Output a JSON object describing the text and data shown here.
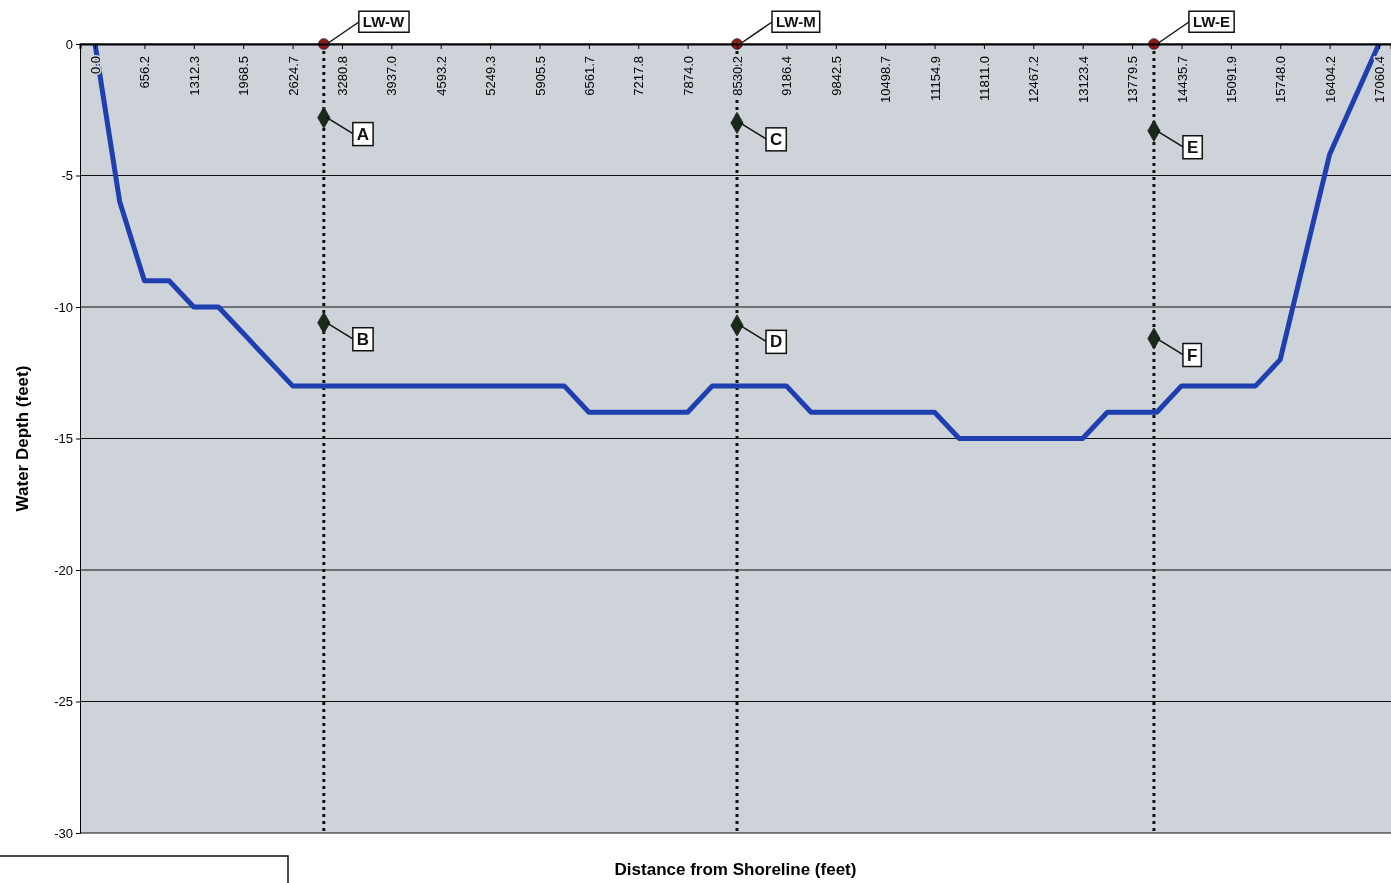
{
  "chart_data": {
    "type": "line",
    "xlabel": "Distance from Shoreline (feet)",
    "ylabel": "Water Depth (feet)",
    "xlim": [
      -200,
      17220
    ],
    "ylim": [
      -30,
      0
    ],
    "xticks": [
      {
        "value": 0,
        "label": "0.0"
      },
      656.2,
      1312.3,
      1968.5,
      2624.7,
      3280.8,
      {
        "value": 3937,
        "label": "3937.0"
      },
      4593.2,
      5249.3,
      5905.5,
      6561.7,
      7217.8,
      {
        "value": 7874,
        "label": "7874.0"
      },
      8530.2,
      9186.4,
      9842.5,
      10498.7,
      11154.9,
      {
        "value": 11811,
        "label": "11811.0"
      },
      12467.2,
      13123.4,
      13779.5,
      14435.7,
      15091.9,
      {
        "value": 15748,
        "label": "15748.0"
      },
      16404.2,
      17060.4
    ],
    "yticks": [
      0,
      -5,
      -10,
      -15,
      -20,
      -25,
      -30
    ],
    "grid": "y",
    "series": [
      {
        "color": "#1f3fb0",
        "marker": "none",
        "x": [
          0,
          328,
          656,
          984,
          1312,
          1640,
          2625,
          6234,
          6562,
          7874,
          8202,
          9186,
          9514,
          11155,
          11483,
          13123,
          13451,
          14108,
          14436,
          15420,
          15748,
          16404,
          17060
        ],
        "values": [
          0,
          -6,
          -9,
          -9,
          -10,
          -10,
          -13,
          -13,
          -14,
          -14,
          -13,
          -13,
          -14,
          -14,
          -15,
          -15,
          -14,
          -14,
          -13,
          -13,
          -12,
          -4.2,
          0
        ]
      },
      {
        "type": "scatter",
        "color": "#8b1a1a",
        "marker": "circle",
        "x": [
          3040,
          8530,
          14070
        ],
        "values": [
          0,
          0,
          0
        ]
      },
      {
        "type": "scatter",
        "color": "#1a2a1a",
        "marker": "diamond",
        "x": [
          3040,
          3040,
          8530,
          8530,
          14070,
          14070
        ],
        "values": [
          -2.8,
          -10.6,
          -3,
          -10.7,
          -3.3,
          -11.2
        ]
      }
    ],
    "ref_lines": [
      {
        "axis": "x",
        "value": 3040,
        "label": "LW-W",
        "color": "#111111",
        "line_style": "dotted"
      },
      {
        "axis": "x",
        "value": 8530,
        "label": "LW-M",
        "color": "#111111",
        "line_style": "dotted"
      },
      {
        "axis": "x",
        "value": 14070,
        "label": "LW-E",
        "color": "#111111",
        "line_style": "dotted"
      }
    ],
    "annotations": [
      {
        "text": "A",
        "x": 3040,
        "y": -2.8
      },
      {
        "text": "B",
        "x": 3040,
        "y": -10.6
      },
      {
        "text": "C",
        "x": 8530,
        "y": -3
      },
      {
        "text": "D",
        "x": 8530,
        "y": -10.7
      },
      {
        "text": "E",
        "x": 14070,
        "y": -3.3
      },
      {
        "text": "F",
        "x": 14070,
        "y": -11.2
      }
    ]
  }
}
